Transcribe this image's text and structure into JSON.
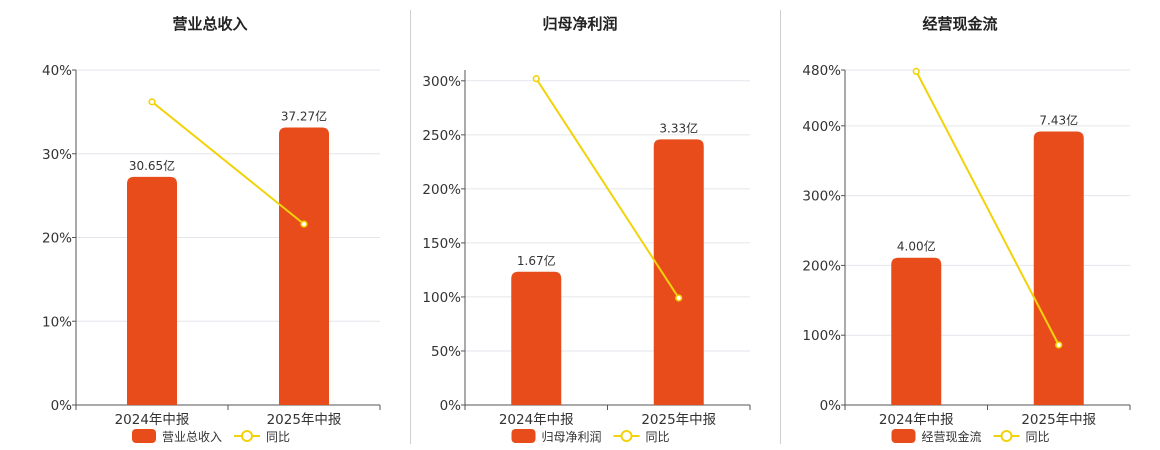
{
  "colors": {
    "bar": "#E84C1A",
    "line": "#F2D20B",
    "grid": "#E3E6EB",
    "axis": "#555555"
  },
  "chart_data": [
    {
      "type": "bar",
      "title": "营业总收入",
      "categories": [
        "2024年中报",
        "2025年中报"
      ],
      "series": [
        {
          "name": "营业总收入",
          "type": "bar",
          "values": [
            30.65,
            37.27
          ],
          "labels": [
            "30.65亿",
            "37.27亿"
          ]
        },
        {
          "name": "同比",
          "type": "line",
          "values": [
            36.2,
            21.6
          ]
        }
      ],
      "bar_scale": [
        0,
        45
      ],
      "ylim": [
        0,
        40
      ],
      "yticks": [
        0,
        10,
        20,
        30,
        40
      ],
      "ytick_labels": [
        "0%",
        "10%",
        "20%",
        "30%",
        "40%"
      ],
      "legend": "bottom"
    },
    {
      "type": "bar",
      "title": "归母净利润",
      "categories": [
        "2024年中报",
        "2025年中报"
      ],
      "series": [
        {
          "name": "归母净利润",
          "type": "bar",
          "values": [
            1.67,
            3.33
          ],
          "labels": [
            "1.67亿",
            "3.33亿"
          ]
        },
        {
          "name": "同比",
          "type": "line",
          "values": [
            302,
            99
          ]
        }
      ],
      "bar_scale": [
        0,
        4.2
      ],
      "ylim": [
        0,
        310
      ],
      "yticks": [
        0,
        50,
        100,
        150,
        200,
        250,
        300
      ],
      "ytick_labels": [
        "0%",
        "50%",
        "100%",
        "150%",
        "200%",
        "250%",
        "300%"
      ],
      "legend": "bottom"
    },
    {
      "type": "bar",
      "title": "经营现金流",
      "categories": [
        "2024年中报",
        "2025年中报"
      ],
      "series": [
        {
          "name": "经营现金流",
          "type": "bar",
          "values": [
            4.0,
            7.43
          ],
          "labels": [
            "4.00亿",
            "7.43亿"
          ]
        },
        {
          "name": "同比",
          "type": "line",
          "values": [
            478,
            86
          ]
        }
      ],
      "bar_scale": [
        0,
        9.1
      ],
      "ylim": [
        0,
        480
      ],
      "yticks": [
        0,
        100,
        200,
        300,
        400,
        480
      ],
      "ytick_labels": [
        "0%",
        "100%",
        "200%",
        "300%",
        "400%",
        "480%"
      ],
      "legend": "bottom"
    }
  ]
}
